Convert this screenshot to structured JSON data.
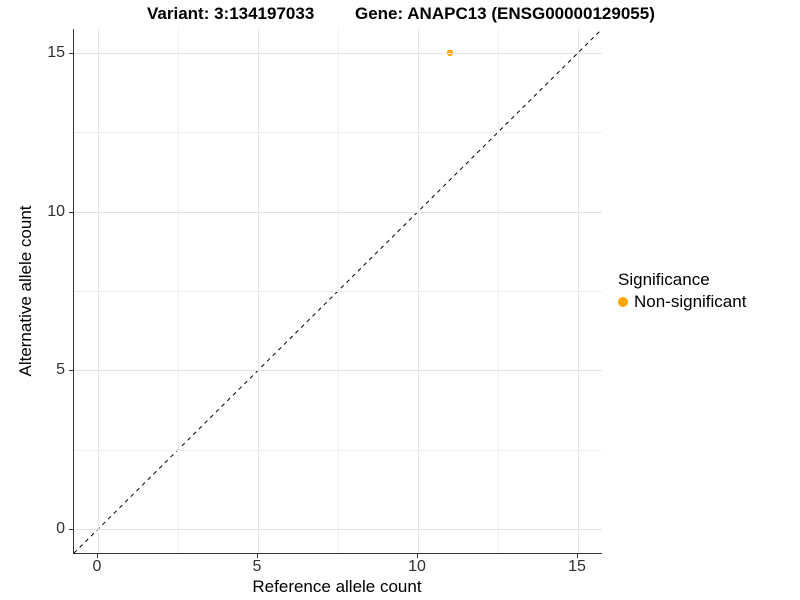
{
  "title": {
    "variant": "Variant: 3:134197033",
    "gene": "Gene: ANAPC13 (ENSG00000129055)"
  },
  "axes": {
    "x": {
      "label": "Reference allele count",
      "ticks": [
        "0",
        "5",
        "10",
        "15"
      ]
    },
    "y": {
      "label": "Alternative allele count",
      "ticks": [
        "0",
        "5",
        "10",
        "15"
      ]
    }
  },
  "legend": {
    "title": "Significance",
    "items": [
      {
        "label": "Non-significant",
        "color": "#FFA500"
      }
    ]
  },
  "chart_data": {
    "type": "scatter",
    "title": "Variant: 3:134197033 | Gene: ANAPC13 (ENSG00000129055)",
    "xlabel": "Reference allele count",
    "ylabel": "Alternative allele count",
    "xlim": [
      -0.75,
      15.75
    ],
    "ylim": [
      -0.75,
      15.75
    ],
    "x_ticks": [
      0,
      5,
      10,
      15
    ],
    "y_ticks": [
      0,
      5,
      10,
      15
    ],
    "grid": true,
    "legend_position": "right",
    "series": [
      {
        "name": "Non-significant",
        "color": "#FFA500",
        "points": [
          {
            "x": 11,
            "y": 15
          }
        ]
      }
    ],
    "reference_line": {
      "kind": "identity",
      "style": "dashed",
      "color": "#000000"
    }
  }
}
